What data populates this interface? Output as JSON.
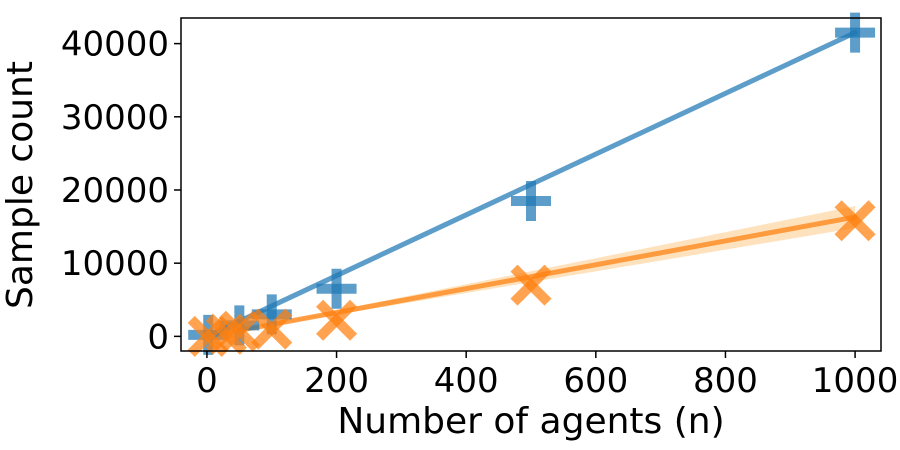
{
  "chart_data": {
    "type": "line",
    "xlabel": "Number of agents (n)",
    "ylabel": "Sample count",
    "xlim": [
      -40,
      1040
    ],
    "ylim": [
      -2000,
      43500
    ],
    "x_ticks": [
      0,
      200,
      400,
      600,
      800,
      1000
    ],
    "y_ticks": [
      0,
      10000,
      20000,
      30000,
      40000
    ],
    "series": [
      {
        "marker": "plus",
        "color": "#1f77b4",
        "points": [
          {
            "x": 2,
            "y": 200
          },
          {
            "x": 50,
            "y": 1500
          },
          {
            "x": 100,
            "y": 3000
          },
          {
            "x": 200,
            "y": 6500
          },
          {
            "x": 500,
            "y": 18500
          },
          {
            "x": 1000,
            "y": 41500
          }
        ],
        "fit": {
          "x": [
            0,
            1000
          ],
          "y": [
            0,
            41500
          ]
        }
      },
      {
        "marker": "x",
        "color": "#ff7f0e",
        "band_color": "#fdd8a8",
        "points": [
          {
            "x": 2,
            "y": 0
          },
          {
            "x": 30,
            "y": 300
          },
          {
            "x": 50,
            "y": 700
          },
          {
            "x": 100,
            "y": 1000
          },
          {
            "x": 200,
            "y": 2200
          },
          {
            "x": 500,
            "y": 7000
          },
          {
            "x": 1000,
            "y": 15800
          }
        ],
        "fit": {
          "x": [
            0,
            1000
          ],
          "y": [
            0,
            16300
          ]
        },
        "band": {
          "x": [
            0,
            1000
          ],
          "lower": [
            0,
            14800
          ],
          "upper": [
            0,
            17800
          ]
        }
      }
    ]
  }
}
